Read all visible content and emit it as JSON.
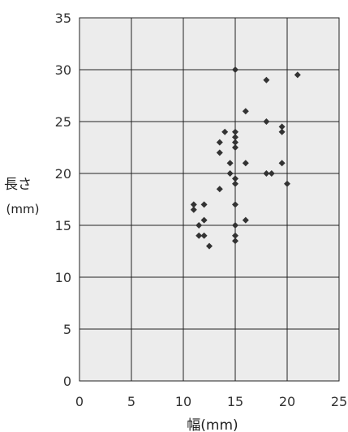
{
  "chart_data": {
    "type": "scatter",
    "title": "",
    "xlabel": "幅(mm)",
    "ylabel": "長さ",
    "ylabel_unit": "(mm)",
    "xlim": [
      0,
      25
    ],
    "ylim": [
      0,
      35
    ],
    "xticks": [
      "0",
      "5",
      "10",
      "15",
      "20",
      "25"
    ],
    "yticks": [
      "0",
      "5",
      "10",
      "15",
      "20",
      "25",
      "30",
      "35"
    ],
    "grid": true,
    "marker": "diamond",
    "marker_color": "#333333",
    "plot_background": "#ececec",
    "grid_color": "#222222",
    "points": [
      {
        "x": 15,
        "y": 30
      },
      {
        "x": 18,
        "y": 29
      },
      {
        "x": 21,
        "y": 29.5
      },
      {
        "x": 16,
        "y": 26
      },
      {
        "x": 18,
        "y": 25
      },
      {
        "x": 19.5,
        "y": 24.5
      },
      {
        "x": 19.5,
        "y": 24
      },
      {
        "x": 14,
        "y": 24
      },
      {
        "x": 15,
        "y": 24
      },
      {
        "x": 15,
        "y": 23.5
      },
      {
        "x": 13.5,
        "y": 23
      },
      {
        "x": 15,
        "y": 23
      },
      {
        "x": 15,
        "y": 22.5
      },
      {
        "x": 13.5,
        "y": 22
      },
      {
        "x": 14.5,
        "y": 21
      },
      {
        "x": 16,
        "y": 21
      },
      {
        "x": 19.5,
        "y": 21
      },
      {
        "x": 14.5,
        "y": 20
      },
      {
        "x": 18,
        "y": 20
      },
      {
        "x": 18.5,
        "y": 20
      },
      {
        "x": 15,
        "y": 19.5
      },
      {
        "x": 15,
        "y": 19
      },
      {
        "x": 20,
        "y": 19
      },
      {
        "x": 13.5,
        "y": 18.5
      },
      {
        "x": 11,
        "y": 17
      },
      {
        "x": 12,
        "y": 17
      },
      {
        "x": 15,
        "y": 17
      },
      {
        "x": 11,
        "y": 16.5
      },
      {
        "x": 12,
        "y": 15.5
      },
      {
        "x": 16,
        "y": 15.5
      },
      {
        "x": 11.5,
        "y": 15
      },
      {
        "x": 15,
        "y": 15
      },
      {
        "x": 11.5,
        "y": 14
      },
      {
        "x": 12,
        "y": 14
      },
      {
        "x": 15,
        "y": 14
      },
      {
        "x": 15,
        "y": 13.5
      },
      {
        "x": 12.5,
        "y": 13
      }
    ]
  }
}
